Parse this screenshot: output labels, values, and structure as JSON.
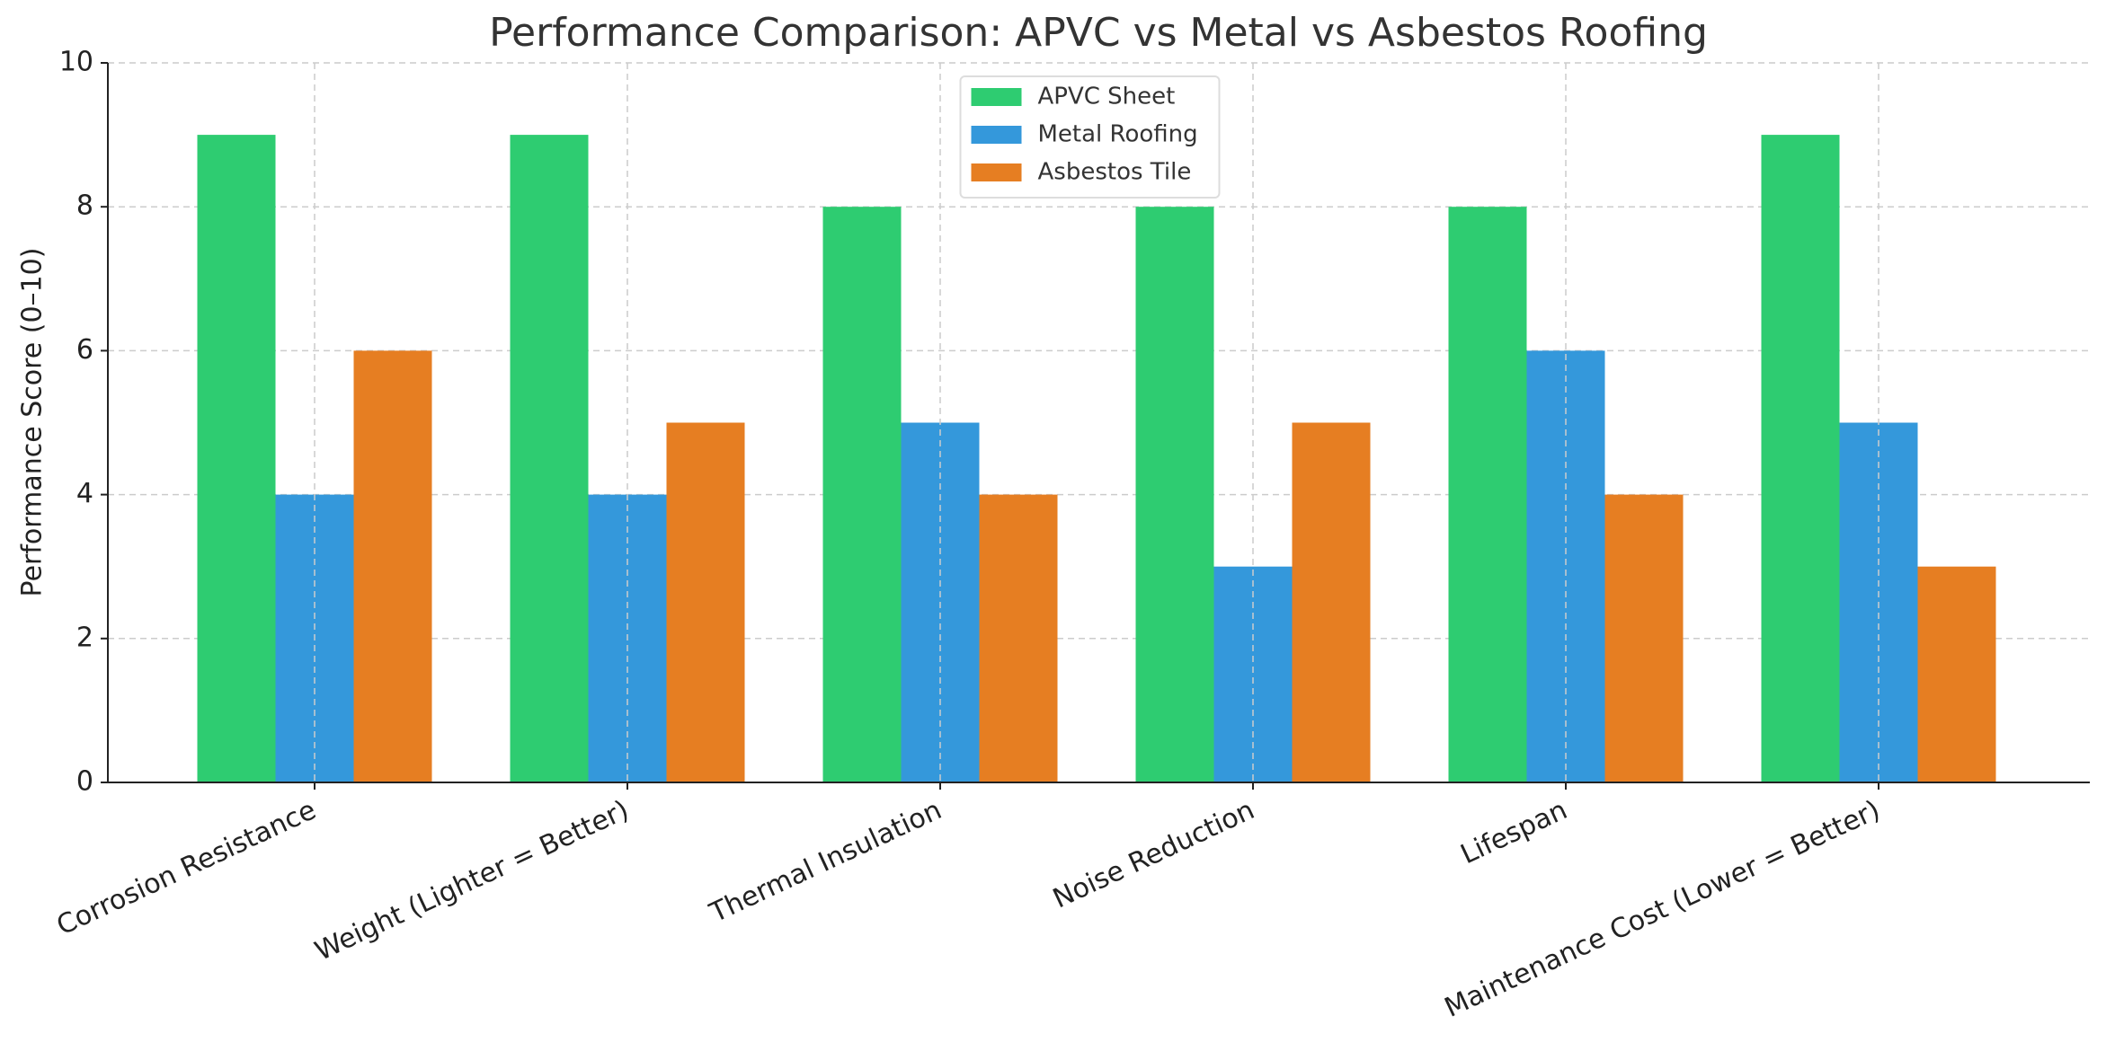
{
  "chart_data": {
    "type": "bar",
    "title": "Performance Comparison: APVC vs Metal vs Asbestos Roofing",
    "y_label": "Performance Score (0–10)",
    "categories": [
      "Corrosion Resistance",
      "Weight (Lighter = Better)",
      "Thermal Insulation",
      "Noise Reduction",
      "Lifespan",
      "Maintenance Cost (Lower = Better)"
    ],
    "series": [
      {
        "name": "APVC Sheet",
        "color": "#2ecc71",
        "values": [
          9,
          9,
          8,
          8,
          8,
          9
        ]
      },
      {
        "name": "Metal Roofing",
        "color": "#3498db",
        "values": [
          4,
          4,
          5,
          3,
          6,
          5
        ]
      },
      {
        "name": "Asbestos Tile",
        "color": "#e67e22",
        "values": [
          6,
          5,
          4,
          5,
          4,
          3
        ]
      }
    ],
    "ylim": [
      0,
      10
    ],
    "yticks": [
      0,
      2,
      4,
      6,
      8,
      10
    ],
    "grid": true,
    "legend": "upper center"
  }
}
